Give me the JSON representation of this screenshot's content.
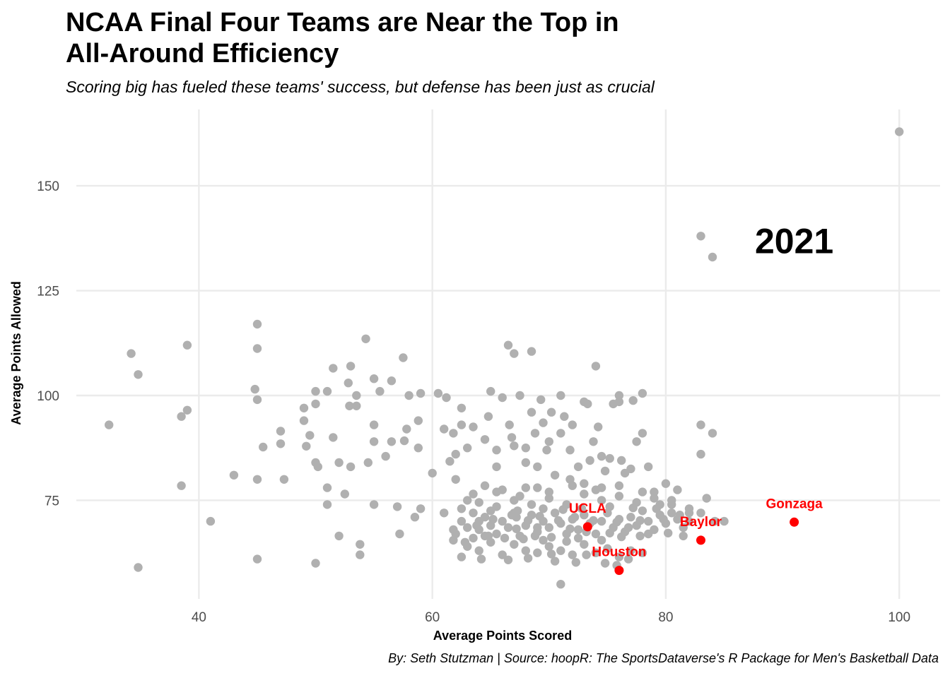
{
  "chart_data": {
    "type": "scatter",
    "title_lines": [
      "NCAA Final Four Teams are Near the Top in",
      "All-Around Efficiency"
    ],
    "subtitle": "Scoring big has fueled these teams' success, but defense has been just as crucial",
    "caption": "By: Seth Stutzman | Source: hoopR: The SportsDataverse's R Package for Men's Basketball Data",
    "xlabel": "Average Points Scored",
    "ylabel": "Average Points Allowed",
    "annotation": "2021",
    "annotation_at": [
      91,
      137
    ],
    "xlim": [
      29.5,
      103.5
    ],
    "ylim": [
      51.5,
      168.2
    ],
    "x_ticks": [
      40,
      60,
      80,
      100
    ],
    "y_ticks": [
      75,
      100,
      125,
      150
    ],
    "grid": true,
    "colors": {
      "points": "#b0b0b0",
      "highlight": "#ff0000",
      "grid": "#ebebeb"
    },
    "highlights": [
      {
        "name": "UCLA",
        "x": 73.3,
        "y": 68.7
      },
      {
        "name": "Baylor",
        "x": 83.0,
        "y": 65.5
      },
      {
        "name": "Gonzaga",
        "x": 91.0,
        "y": 69.8
      },
      {
        "name": "Houston",
        "x": 76.0,
        "y": 58.3
      }
    ],
    "points": [
      [
        100,
        162.9
      ],
      [
        83,
        138
      ],
      [
        84,
        133
      ],
      [
        32.3,
        93
      ],
      [
        34.2,
        110
      ],
      [
        34.8,
        105
      ],
      [
        34.8,
        59
      ],
      [
        38.5,
        95
      ],
      [
        38.5,
        78.5
      ],
      [
        39,
        112
      ],
      [
        39,
        96.5
      ],
      [
        41,
        70
      ],
      [
        43,
        81
      ],
      [
        44.8,
        101.5
      ],
      [
        45,
        117
      ],
      [
        45,
        111.2
      ],
      [
        45,
        99
      ],
      [
        45,
        80
      ],
      [
        45,
        61
      ],
      [
        45.5,
        87.7
      ],
      [
        47,
        91.5
      ],
      [
        47,
        88.5
      ],
      [
        47.3,
        80
      ],
      [
        49,
        97
      ],
      [
        49,
        94
      ],
      [
        49.2,
        87.9
      ],
      [
        49.5,
        90.5
      ],
      [
        50,
        84
      ],
      [
        50,
        98
      ],
      [
        50,
        101
      ],
      [
        50.2,
        83
      ],
      [
        50,
        60
      ],
      [
        51,
        101
      ],
      [
        51,
        78
      ],
      [
        51,
        74
      ],
      [
        51.5,
        90
      ],
      [
        51.5,
        106.5
      ],
      [
        52,
        84
      ],
      [
        52,
        66.5
      ],
      [
        52.5,
        76.5
      ],
      [
        52.8,
        103
      ],
      [
        52.9,
        97.5
      ],
      [
        53,
        83
      ],
      [
        53,
        107
      ],
      [
        53.5,
        100
      ],
      [
        53.5,
        97.5
      ],
      [
        53.8,
        64.5
      ],
      [
        53.8,
        62
      ],
      [
        54.3,
        113.5
      ],
      [
        54.5,
        84
      ],
      [
        55,
        89
      ],
      [
        55,
        93
      ],
      [
        55,
        74
      ],
      [
        55,
        104
      ],
      [
        55.5,
        101
      ],
      [
        56,
        85.5
      ],
      [
        56.5,
        103.5
      ],
      [
        56.5,
        89
      ],
      [
        57,
        73.5
      ],
      [
        57.2,
        67
      ],
      [
        57.5,
        109
      ],
      [
        57.6,
        89.2
      ],
      [
        57.8,
        92
      ],
      [
        58,
        100
      ],
      [
        58.5,
        71
      ],
      [
        58.8,
        87.5
      ],
      [
        58.8,
        94
      ],
      [
        59,
        73
      ],
      [
        59,
        100.5
      ],
      [
        60,
        81.5
      ],
      [
        60.5,
        100.5
      ],
      [
        61,
        72
      ],
      [
        61.2,
        99.5
      ],
      [
        61,
        92
      ],
      [
        61.5,
        84.3
      ],
      [
        61.8,
        68
      ],
      [
        61.8,
        91
      ],
      [
        62,
        86
      ],
      [
        62.5,
        97
      ],
      [
        62,
        80
      ],
      [
        62.5,
        93
      ],
      [
        63,
        87.5
      ],
      [
        63,
        75
      ],
      [
        63.5,
        92.5
      ],
      [
        63.5,
        76.5
      ],
      [
        64,
        70
      ],
      [
        64.5,
        89.5
      ],
      [
        64.5,
        78.5
      ],
      [
        64.8,
        95
      ],
      [
        64.8,
        66.5
      ],
      [
        65,
        101
      ],
      [
        65.5,
        87
      ],
      [
        65.5,
        83
      ],
      [
        65.5,
        77
      ],
      [
        66,
        99.5
      ],
      [
        66.5,
        112
      ],
      [
        66.6,
        93
      ],
      [
        66.8,
        90
      ],
      [
        67,
        88
      ],
      [
        67,
        110
      ],
      [
        67.3,
        72.5
      ],
      [
        67.5,
        100
      ],
      [
        67.5,
        76
      ],
      [
        68,
        84
      ],
      [
        68,
        87.5
      ],
      [
        68.5,
        110.5
      ],
      [
        68.5,
        96
      ],
      [
        68.8,
        91
      ],
      [
        69,
        83
      ],
      [
        69,
        78
      ],
      [
        69.3,
        99
      ],
      [
        69.5,
        93.5
      ],
      [
        69.8,
        87
      ],
      [
        70,
        89
      ],
      [
        70.2,
        96
      ],
      [
        70.5,
        81
      ],
      [
        71,
        91
      ],
      [
        71,
        100
      ],
      [
        71.3,
        95
      ],
      [
        71.8,
        80
      ],
      [
        71.8,
        87
      ],
      [
        72,
        93
      ],
      [
        72.5,
        83
      ],
      [
        73,
        98.5
      ],
      [
        73,
        79
      ],
      [
        73.3,
        98
      ],
      [
        73.5,
        84.5
      ],
      [
        73.8,
        89
      ],
      [
        74,
        107
      ],
      [
        74.2,
        92.5
      ],
      [
        74.5,
        78
      ],
      [
        74.5,
        85.5
      ],
      [
        74.8,
        82
      ],
      [
        75.2,
        85
      ],
      [
        75.5,
        98
      ],
      [
        76,
        100
      ],
      [
        76,
        98.5
      ],
      [
        76.2,
        84.5
      ],
      [
        76.5,
        81.5
      ],
      [
        77,
        82.5
      ],
      [
        77.2,
        98.8
      ],
      [
        77.5,
        89
      ],
      [
        78,
        100.5
      ],
      [
        78,
        91
      ],
      [
        78.5,
        83
      ],
      [
        79,
        77
      ],
      [
        79.5,
        74
      ],
      [
        80,
        79
      ],
      [
        80.5,
        75
      ],
      [
        81,
        77.5
      ],
      [
        82,
        70
      ],
      [
        83,
        93
      ],
      [
        83,
        86
      ],
      [
        83.5,
        75.5
      ],
      [
        84,
        91
      ],
      [
        85,
        70
      ],
      [
        62,
        67
      ],
      [
        62.5,
        70
      ],
      [
        63,
        68.5
      ],
      [
        63.5,
        66
      ],
      [
        64,
        68
      ],
      [
        64.5,
        71
      ],
      [
        65,
        69
      ],
      [
        65.5,
        67
      ],
      [
        66,
        70
      ],
      [
        66.5,
        68.5
      ],
      [
        67,
        72
      ],
      [
        67.5,
        66.5
      ],
      [
        68,
        69
      ],
      [
        68.5,
        71.5
      ],
      [
        69,
        67.5
      ],
      [
        69.5,
        70
      ],
      [
        70,
        68.5
      ],
      [
        70.5,
        72
      ],
      [
        71,
        69.5
      ],
      [
        71.5,
        67
      ],
      [
        72,
        70.5
      ],
      [
        72.5,
        68
      ],
      [
        73,
        71.5
      ],
      [
        73.5,
        69.5
      ],
      [
        74,
        67
      ],
      [
        74.5,
        70
      ],
      [
        75,
        72
      ],
      [
        75.5,
        68.5
      ],
      [
        76,
        70.5
      ],
      [
        76.5,
        67.5
      ],
      [
        77,
        71
      ],
      [
        77.5,
        69
      ],
      [
        78,
        72.5
      ],
      [
        78.5,
        70
      ],
      [
        79,
        68
      ],
      [
        79.5,
        71.5
      ],
      [
        80,
        69.5
      ],
      [
        80.5,
        72
      ],
      [
        81,
        70.5
      ],
      [
        81.5,
        68.5
      ],
      [
        82,
        72
      ],
      [
        63,
        64
      ],
      [
        64,
        63
      ],
      [
        65,
        65
      ],
      [
        66,
        62
      ],
      [
        67,
        64.5
      ],
      [
        68,
        63
      ],
      [
        69,
        62.5
      ],
      [
        70,
        64
      ],
      [
        71,
        63
      ],
      [
        72,
        62
      ],
      [
        73,
        64.5
      ],
      [
        74,
        62.5
      ],
      [
        75,
        63.5
      ],
      [
        76,
        61.5
      ],
      [
        77,
        63
      ],
      [
        78,
        62.5
      ],
      [
        62.5,
        61.5
      ],
      [
        64.2,
        61
      ],
      [
        66.5,
        60.8
      ],
      [
        68.2,
        61.2
      ],
      [
        70.5,
        60.5
      ],
      [
        72.3,
        60.2
      ],
      [
        74.8,
        60
      ],
      [
        75.8,
        59.5
      ],
      [
        71,
        55
      ],
      [
        62.5,
        73
      ],
      [
        64,
        74.5
      ],
      [
        65.5,
        73.5
      ],
      [
        67,
        75
      ],
      [
        68.5,
        74
      ],
      [
        70,
        75.5
      ],
      [
        71.5,
        74
      ],
      [
        73,
        76.5
      ],
      [
        74.5,
        75
      ],
      [
        76,
        76
      ],
      [
        77.5,
        74.5
      ],
      [
        79,
        75.5
      ],
      [
        80.5,
        74
      ],
      [
        82,
        73
      ],
      [
        66,
        77.5
      ],
      [
        68,
        78
      ],
      [
        70,
        77
      ],
      [
        72,
        78.5
      ],
      [
        74,
        77.5
      ],
      [
        76,
        78.5
      ],
      [
        78,
        77
      ],
      [
        63.5,
        72
      ],
      [
        65,
        72.5
      ],
      [
        67.2,
        71
      ],
      [
        69.5,
        73
      ],
      [
        71.2,
        72.8
      ],
      [
        72.8,
        73
      ],
      [
        75.2,
        73.5
      ],
      [
        77.2,
        73.2
      ],
      [
        79.2,
        73
      ],
      [
        81.2,
        71.5
      ],
      [
        83,
        72
      ],
      [
        84.2,
        70
      ],
      [
        69.5,
        65.5
      ],
      [
        70.2,
        66.2
      ],
      [
        71.5,
        65.2
      ],
      [
        72.5,
        66
      ],
      [
        74.5,
        65.5
      ],
      [
        76.2,
        66.3
      ],
      [
        77.8,
        66.5
      ],
      [
        78.5,
        67
      ],
      [
        80.2,
        67.2
      ],
      [
        81.5,
        66.5
      ],
      [
        66.2,
        66
      ],
      [
        67.8,
        65.8
      ],
      [
        68.8,
        66.5
      ],
      [
        63.8,
        69
      ],
      [
        65.2,
        70.5
      ],
      [
        66.8,
        71.5
      ],
      [
        68.2,
        70.2
      ],
      [
        69.2,
        71.2
      ],
      [
        70.8,
        70.2
      ],
      [
        72.2,
        71
      ],
      [
        73.8,
        70.2
      ],
      [
        75.8,
        69.8
      ],
      [
        77.8,
        70.2
      ],
      [
        79.8,
        70.5
      ],
      [
        64.5,
        66.5
      ],
      [
        70.2,
        62.2
      ],
      [
        73.2,
        62
      ],
      [
        76.8,
        61
      ],
      [
        61.8,
        65.5
      ],
      [
        62.8,
        65
      ],
      [
        67.2,
        68.2
      ],
      [
        69,
        68.5
      ],
      [
        71.8,
        68.2
      ],
      [
        73.2,
        67.5
      ],
      [
        75.2,
        67.2
      ],
      [
        76.8,
        68.5
      ]
    ]
  }
}
